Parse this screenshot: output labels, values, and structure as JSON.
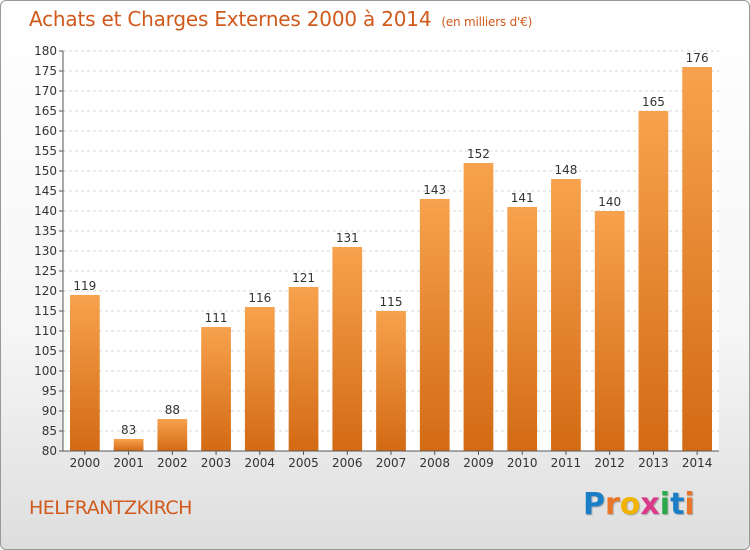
{
  "chart_data": {
    "type": "bar",
    "title": "Achats et Charges Externes 2000 à 2014",
    "unit_label": "(en milliers d'€)",
    "categories": [
      "2000",
      "2001",
      "2002",
      "2003",
      "2004",
      "2005",
      "2006",
      "2007",
      "2008",
      "2009",
      "2010",
      "2011",
      "2012",
      "2013",
      "2014"
    ],
    "values": [
      119,
      83,
      88,
      111,
      116,
      121,
      131,
      115,
      143,
      152,
      141,
      148,
      140,
      165,
      176
    ],
    "ylim": [
      80,
      180
    ],
    "yticks": [
      80,
      85,
      90,
      95,
      100,
      105,
      110,
      115,
      120,
      125,
      130,
      135,
      140,
      145,
      150,
      155,
      160,
      165,
      170,
      175,
      180
    ],
    "grid": true,
    "bar_color": "#f08a2e"
  },
  "commune": "HELFRANTZKIRCH",
  "logo": {
    "text": "Proxiti",
    "letter_colors": [
      "#1a7fc6",
      "#e8752a",
      "#f0b400",
      "#d93a8a",
      "#2aa84a",
      "#1a7fc6",
      "#e8752a"
    ]
  },
  "colors": {
    "accent": "#d05a1c"
  }
}
